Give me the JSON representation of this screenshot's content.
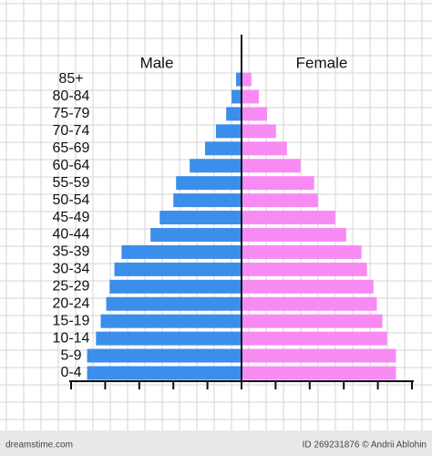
{
  "chart_data": {
    "type": "pyramid",
    "left_label": "Male",
    "right_label": "Female",
    "categories": [
      "0-4",
      "5-9",
      "10-14",
      "15-19",
      "20-24",
      "25-29",
      "30-34",
      "35-39",
      "40-44",
      "45-49",
      "50-54",
      "55-59",
      "60-64",
      "65-69",
      "70-74",
      "75-79",
      "80-84",
      "85+"
    ],
    "series": [
      {
        "name": "Male",
        "side": "left",
        "color": "#3b8eea",
        "values": [
          4.53,
          4.53,
          4.27,
          4.13,
          3.97,
          3.87,
          3.73,
          3.52,
          2.67,
          2.4,
          2.0,
          1.92,
          1.52,
          1.07,
          0.75,
          0.45,
          0.29,
          0.16
        ]
      },
      {
        "name": "Female",
        "side": "right",
        "color": "#f88af4",
        "values": [
          4.53,
          4.53,
          4.27,
          4.13,
          3.97,
          3.87,
          3.68,
          3.52,
          3.07,
          2.75,
          2.24,
          2.13,
          1.73,
          1.33,
          1.01,
          0.75,
          0.51,
          0.29
        ]
      }
    ],
    "xlim": [
      0,
      5
    ],
    "xticks": [
      0,
      1,
      2,
      3,
      4,
      5
    ],
    "grid": true
  },
  "footer": {
    "id": "ID 269231876 © Andrii Ablohin",
    "site": "dreamstime.com"
  }
}
